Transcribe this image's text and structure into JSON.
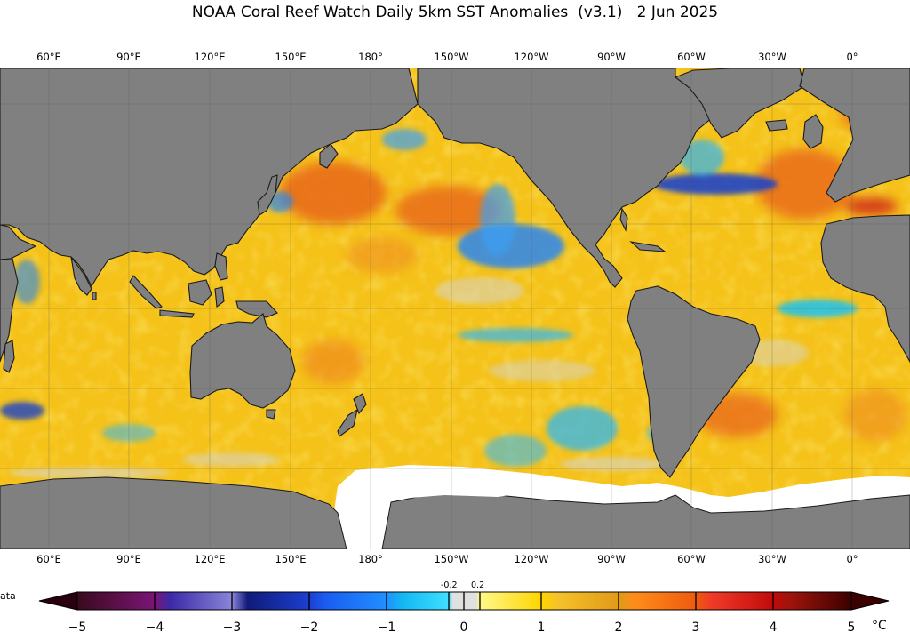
{
  "title": "NOAA Coral Reef Watch Daily 5km SST Anomalies  (v3.1)   2 Jun 2025",
  "map": {
    "top_lon_labels": [
      "60°E",
      "90°E",
      "120°E",
      "150°E",
      "180°",
      "150°W",
      "120°W",
      "90°W",
      "60°W",
      "30°W",
      "0°"
    ],
    "bottom_lon_labels": [
      "60°E",
      "90°E",
      "120°E",
      "150°E",
      "180°",
      "150°W",
      "120°W",
      "90°W",
      "60°W",
      "30°W",
      "0°"
    ],
    "gridlines": true,
    "land_color": "#808080",
    "ice_color": "#ffffff",
    "ocean_base_color": "#f5c21a"
  },
  "nodata_label": "ata",
  "colorbar": {
    "ticks": [
      "−5",
      "−4",
      "−3",
      "−2",
      "−1",
      "0",
      "1",
      "2",
      "3",
      "4",
      "5"
    ],
    "near_zero_labels": [
      "-0.2",
      "0.2"
    ],
    "unit": "°C",
    "range": [
      -5,
      5
    ],
    "colors": {
      "neg5": "#2a0010",
      "neg4": "#7b1575",
      "neg3": "#1f1d8c",
      "neg2": "#1750e6",
      "neg1": "#18c8f5",
      "zero": "#dcdcdc",
      "pos1": "#fff000",
      "pos2": "#f3b11f",
      "pos3": "#ef5c16",
      "pos4": "#c00e0e",
      "pos5": "#3b0000"
    }
  }
}
